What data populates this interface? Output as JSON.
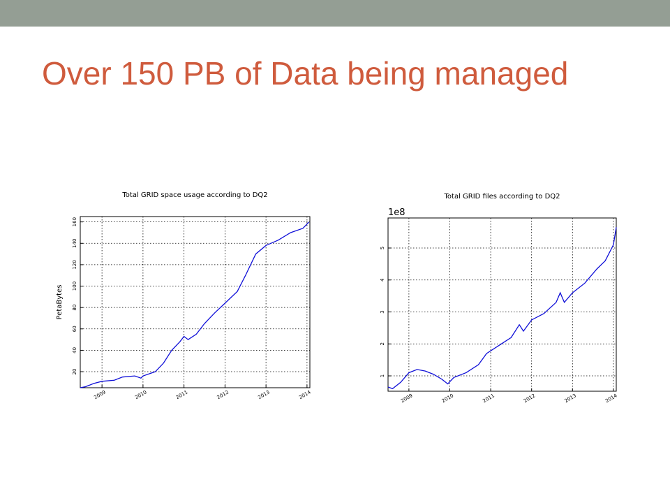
{
  "title": "Over 150 PB of Data being managed",
  "chart_data": [
    {
      "type": "line",
      "title": "Total GRID space usage according to DQ2",
      "y_label": "PetaBytes",
      "x": [
        2008.47,
        2008.6,
        2008.8,
        2009,
        2009.3,
        2009.5,
        2009.8,
        2009.95,
        2010,
        2010.3,
        2010.5,
        2010.7,
        2010.9,
        2011,
        2011.1,
        2011.3,
        2011.5,
        2011.75,
        2012,
        2012.3,
        2012.5,
        2012.75,
        2013,
        2013.3,
        2013.6,
        2013.9,
        2014.05
      ],
      "series": [
        {
          "color": "#1010d8",
          "values": [
            5,
            6,
            9,
            11,
            12,
            15,
            16,
            14,
            16,
            20,
            28,
            40,
            48,
            53,
            50,
            55,
            65,
            75,
            84,
            95,
            110,
            130,
            138,
            143,
            150,
            154,
            160
          ]
        }
      ],
      "xlim": [
        2008.47,
        2014.07
      ],
      "xticks": [
        2009,
        2010,
        2011,
        2012,
        2013,
        2014
      ],
      "ylim": [
        5,
        165
      ],
      "yticks": [
        20,
        40,
        60,
        80,
        100,
        120,
        140,
        160
      ],
      "grid": true
    },
    {
      "type": "line",
      "title": "Total GRID files according to DQ2",
      "offset_text": "1e8",
      "x": [
        2008.49,
        2008.6,
        2008.8,
        2009,
        2009.2,
        2009.4,
        2009.6,
        2009.8,
        2009.95,
        2010.1,
        2010.4,
        2010.7,
        2010.9,
        2011.2,
        2011.5,
        2011.7,
        2011.8,
        2012,
        2012.3,
        2012.6,
        2012.7,
        2012.8,
        2013,
        2013.3,
        2013.6,
        2013.8,
        2014,
        2014.07
      ],
      "series": [
        {
          "color": "#1010d8",
          "values": [
            0.65,
            0.6,
            0.8,
            1.1,
            1.2,
            1.15,
            1.05,
            0.9,
            0.75,
            0.95,
            1.1,
            1.35,
            1.7,
            1.95,
            2.2,
            2.6,
            2.4,
            2.75,
            2.95,
            3.3,
            3.6,
            3.3,
            3.6,
            3.9,
            4.35,
            4.6,
            5.1,
            5.65
          ]
        }
      ],
      "xlim": [
        2008.49,
        2014.07
      ],
      "xticks": [
        2009,
        2010,
        2011,
        2012,
        2013,
        2014
      ],
      "ylim": [
        0.52,
        5.94
      ],
      "yticks": [
        1,
        2,
        3,
        4,
        5
      ],
      "grid": true
    }
  ]
}
